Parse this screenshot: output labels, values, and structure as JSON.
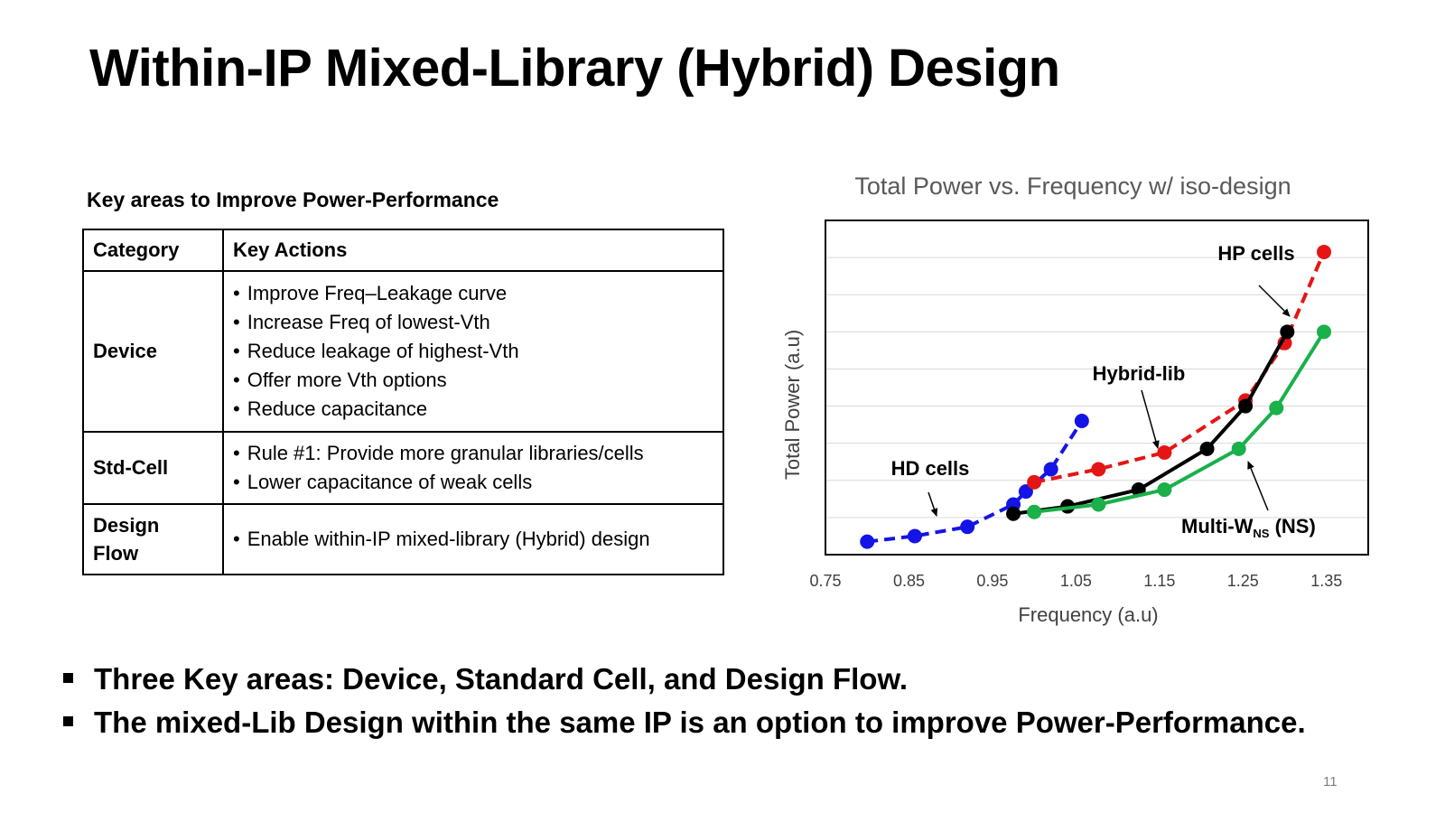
{
  "slide": {
    "title": "Within-IP Mixed-Library (Hybrid) Design",
    "page_number": "11"
  },
  "table": {
    "heading": "Key areas to Improve Power-Performance",
    "headers": [
      "Category",
      "Key Actions"
    ],
    "rows": [
      {
        "category": "Device",
        "actions": [
          "Improve Freq–Leakage curve",
          "Increase Freq of lowest-Vth",
          "Reduce leakage of highest-Vth",
          "Offer more Vth options",
          "Reduce capacitance"
        ]
      },
      {
        "category": "Std-Cell",
        "actions": [
          "Rule #1: Provide more granular libraries/cells",
          "Lower capacitance of weak cells"
        ]
      },
      {
        "category": "Design Flow",
        "actions": [
          "Enable within-IP mixed-library (Hybrid) design"
        ]
      }
    ]
  },
  "bullets": [
    "Three Key areas: Device, Standard Cell, and Design Flow.",
    "The mixed-Lib Design within the same IP is an option to improve Power-Performance."
  ],
  "chart_data": {
    "type": "line",
    "title": "Total Power vs. Frequency w/ iso-design",
    "xlabel": "Frequency (a.u)",
    "ylabel": "Total Power (a.u)",
    "xlim": [
      0.75,
      1.4
    ],
    "ylim": [
      0,
      9
    ],
    "x_ticks": [
      "0.75",
      "0.85",
      "0.95",
      "1.05",
      "1.15",
      "1.25",
      "1.35"
    ],
    "y_ticks_labeled": false,
    "grid": "horizontal",
    "series": [
      {
        "name": "HD cells",
        "color": "#1414e6",
        "dashed": true,
        "points": [
          [
            0.8,
            0.35
          ],
          [
            0.857,
            0.5
          ],
          [
            0.92,
            0.75
          ],
          [
            0.975,
            1.35
          ],
          [
            0.99,
            1.7
          ],
          [
            1.02,
            2.3
          ],
          [
            1.057,
            3.6
          ]
        ]
      },
      {
        "name": "HP cells",
        "color": "#e51515",
        "dashed": true,
        "points": [
          [
            1.0,
            1.95
          ],
          [
            1.077,
            2.3
          ],
          [
            1.156,
            2.75
          ],
          [
            1.253,
            4.15
          ],
          [
            1.3,
            5.7
          ],
          [
            1.347,
            8.15
          ]
        ]
      },
      {
        "name": "Hybrid-lib",
        "color": "#000000",
        "dashed": false,
        "points": [
          [
            0.975,
            1.1
          ],
          [
            1.04,
            1.3
          ],
          [
            1.125,
            1.75
          ],
          [
            1.207,
            2.85
          ],
          [
            1.253,
            4.0
          ],
          [
            1.303,
            6.0
          ]
        ]
      },
      {
        "name": "Multi-W",
        "name_subscript": "NS",
        "name_suffix": " (NS)",
        "color": "#1ab04a",
        "dashed": false,
        "points": [
          [
            1.0,
            1.15
          ],
          [
            1.077,
            1.35
          ],
          [
            1.156,
            1.75
          ],
          [
            1.245,
            2.85
          ],
          [
            1.29,
            3.95
          ],
          [
            1.347,
            6.0
          ]
        ]
      }
    ],
    "annotations": [
      {
        "text": "HP cells"
      },
      {
        "text": "Hybrid-lib"
      },
      {
        "text": "HD cells"
      }
    ]
  }
}
